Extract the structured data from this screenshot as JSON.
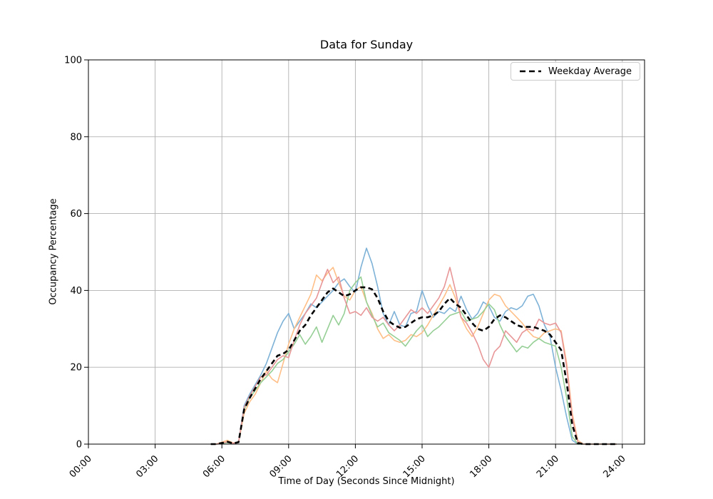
{
  "chart_data": {
    "type": "line",
    "title": "Data for Sunday",
    "xlabel": "Time of Day (Seconds Since Midnight)",
    "ylabel": "Occupancy Percentage",
    "ylim": [
      0,
      100
    ],
    "xlim_hours": [
      0,
      25
    ],
    "grid": true,
    "grid_color": "#b0b0b0",
    "axis_color": "#000000",
    "x_ticks_hours": [
      0,
      3,
      6,
      9,
      12,
      15,
      18,
      21,
      24
    ],
    "x_tick_labels": [
      "00:00",
      "03:00",
      "06:00",
      "09:00",
      "12:00",
      "15:00",
      "18:00",
      "21:00",
      "24:00"
    ],
    "y_ticks": [
      0,
      20,
      40,
      60,
      80,
      100
    ],
    "legend": {
      "position": "upper right",
      "entries": [
        {
          "label": "Weekday Average",
          "style": "dashed",
          "color": "#000000"
        }
      ]
    },
    "x_hours": [
      5.5,
      5.75,
      6.0,
      6.25,
      6.5,
      6.75,
      7.0,
      7.25,
      7.5,
      7.75,
      8.0,
      8.25,
      8.5,
      8.75,
      9.0,
      9.25,
      9.5,
      9.75,
      10.0,
      10.25,
      10.5,
      10.75,
      11.0,
      11.25,
      11.5,
      11.75,
      12.0,
      12.25,
      12.5,
      12.75,
      13.0,
      13.25,
      13.5,
      13.75,
      14.0,
      14.25,
      14.5,
      14.75,
      15.0,
      15.25,
      15.5,
      15.75,
      16.0,
      16.25,
      16.5,
      16.75,
      17.0,
      17.25,
      17.5,
      17.75,
      18.0,
      18.25,
      18.5,
      18.75,
      19.0,
      19.25,
      19.5,
      19.75,
      20.0,
      20.25,
      20.5,
      20.75,
      21.0,
      21.25,
      21.5,
      21.75,
      22.0,
      22.25,
      22.5,
      22.75,
      23.0,
      23.25,
      23.5,
      23.75
    ],
    "series": [
      {
        "id": "weekday-line-1",
        "color": "#7eb2d7",
        "width": 1.6,
        "dash": null,
        "values": [
          0,
          0,
          0.3,
          0.5,
          0.2,
          0.5,
          10,
          13,
          15.5,
          18,
          21,
          25,
          29,
          32,
          34,
          30,
          32,
          34,
          36.5,
          35.5,
          37,
          38.5,
          40,
          42,
          43,
          41,
          39.5,
          46,
          51,
          47,
          41,
          34,
          31,
          34.5,
          31,
          30.5,
          34,
          34.5,
          40,
          36,
          33,
          34.5,
          34,
          35.5,
          34.5,
          38.5,
          35,
          32.5,
          34,
          37,
          36,
          33,
          32,
          34.5,
          35.5,
          35,
          36,
          38.5,
          39,
          36,
          31,
          28,
          20,
          14,
          7,
          1,
          0,
          0,
          0,
          0,
          0,
          0,
          0,
          0
        ]
      },
      {
        "id": "weekday-line-2",
        "color": "#ffbf87",
        "width": 1.6,
        "dash": null,
        "values": [
          0,
          0,
          0.5,
          1,
          0.3,
          0.5,
          8,
          11,
          13,
          16,
          19,
          17,
          16,
          21,
          26,
          30,
          33,
          36,
          39,
          44,
          42.5,
          44.5,
          46,
          42,
          38.5,
          37.5,
          40,
          41,
          37,
          34,
          30,
          27.5,
          28.5,
          27,
          26.5,
          27,
          28.5,
          28,
          29,
          31,
          33.5,
          36,
          38.5,
          41.5,
          38,
          33,
          30,
          28,
          30.5,
          34,
          37.5,
          39,
          38.5,
          36,
          34.5,
          33,
          31.5,
          29.5,
          28,
          27.5,
          29,
          29.5,
          30,
          29.5,
          21,
          8,
          1,
          0,
          0,
          0,
          0,
          0,
          0,
          0
        ]
      },
      {
        "id": "weekday-line-3",
        "color": "#96cf96",
        "width": 1.6,
        "dash": null,
        "values": [
          0,
          0,
          0.2,
          0.4,
          0.2,
          0.5,
          9,
          12,
          14,
          16,
          17.5,
          19,
          21,
          22,
          24,
          26,
          28.5,
          26,
          28,
          30.5,
          26.5,
          30,
          33.5,
          31,
          34,
          40,
          42,
          43.5,
          37,
          33.5,
          30.5,
          31.5,
          29,
          28,
          27,
          25.5,
          27.5,
          29.5,
          31,
          28,
          29.5,
          30.5,
          32,
          33.5,
          34,
          34.5,
          32,
          32.5,
          33,
          34.5,
          36.5,
          35,
          31,
          28,
          26,
          24,
          25.5,
          25,
          26.5,
          27.5,
          26.5,
          26,
          25.5,
          20,
          12,
          2,
          0,
          0,
          0,
          0,
          0,
          0,
          0,
          0
        ]
      },
      {
        "id": "weekday-line-4",
        "color": "#e89697",
        "width": 1.6,
        "dash": null,
        "values": [
          0,
          0,
          0.3,
          0.6,
          0.2,
          0.5,
          9.5,
          12.5,
          15,
          17.5,
          18,
          20,
          22,
          23,
          22.5,
          27,
          31,
          34,
          36,
          38,
          42,
          45.5,
          42,
          43.5,
          38,
          34,
          34.5,
          33.5,
          35.5,
          33,
          32,
          33,
          31,
          29.5,
          31,
          33,
          35,
          34,
          35.5,
          34,
          36,
          38,
          41,
          46,
          40,
          33,
          31.5,
          29,
          26,
          22,
          20,
          24,
          25.5,
          29.5,
          28,
          26.5,
          29,
          30,
          29.5,
          32.5,
          31.5,
          31,
          31.5,
          29,
          20,
          7,
          0.5,
          0,
          0,
          0,
          0,
          0,
          0,
          0
        ]
      },
      {
        "id": "weekday-average",
        "color": "#000000",
        "width": 2.6,
        "dash": [
          7,
          4.5
        ],
        "values": [
          0,
          0,
          0.3,
          0.6,
          0.2,
          0.5,
          9,
          12,
          14.5,
          17,
          19,
          21,
          23,
          23.5,
          24.5,
          27,
          29.5,
          31,
          33.5,
          35.5,
          37.5,
          39.5,
          40.5,
          39.5,
          38.5,
          39,
          40,
          40.8,
          40.8,
          40.3,
          38,
          34.5,
          32,
          31,
          30.3,
          30.5,
          31.5,
          32.5,
          33,
          33,
          33.5,
          34.5,
          36.5,
          38,
          36.5,
          35.5,
          33.5,
          31.5,
          30,
          29.5,
          30.5,
          32.5,
          33.5,
          33,
          32,
          31,
          30.5,
          30.5,
          30.5,
          30,
          29.5,
          28.5,
          26.5,
          24.5,
          16,
          5,
          0.3,
          0,
          0,
          0,
          0,
          0,
          0,
          0
        ]
      }
    ]
  }
}
